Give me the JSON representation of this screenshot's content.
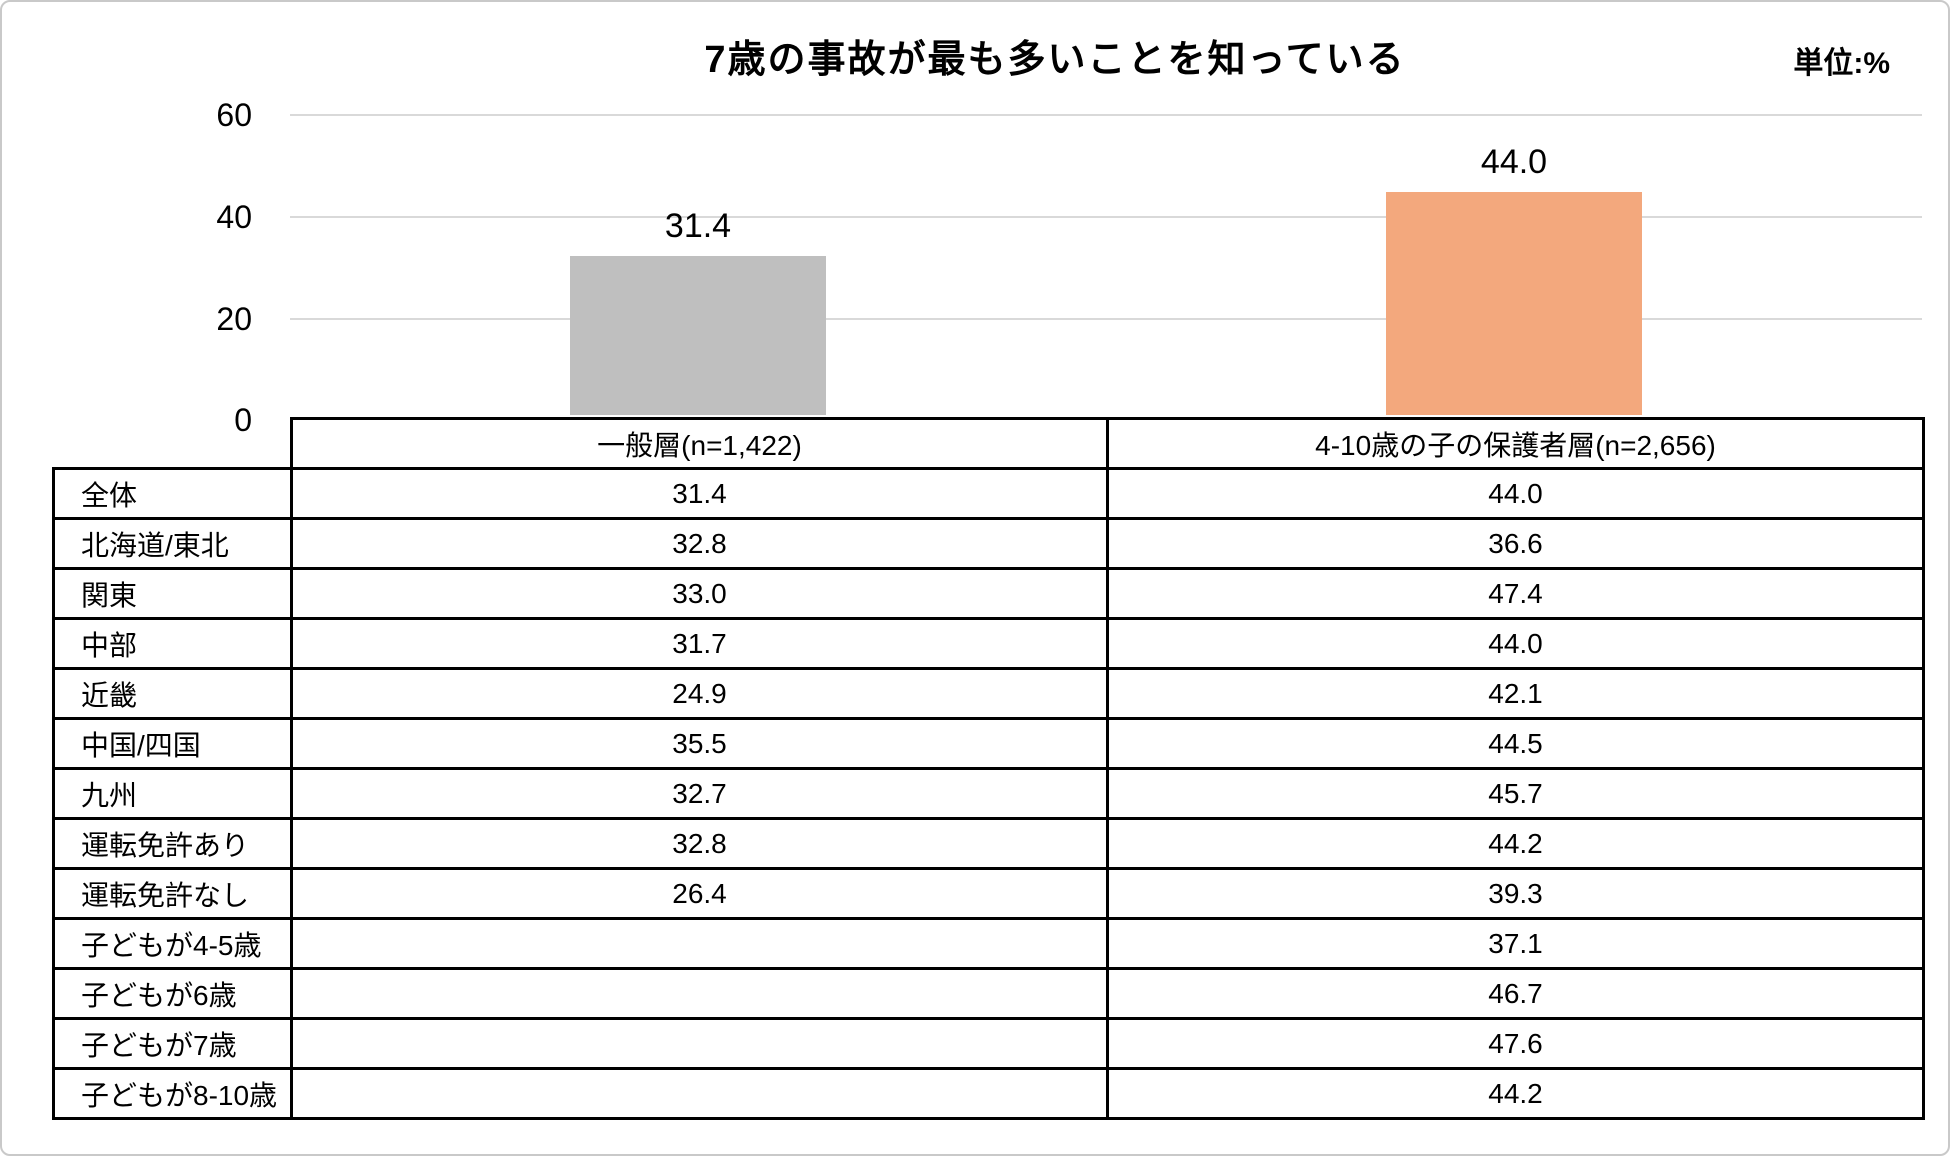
{
  "chart_data": {
    "type": "bar",
    "title": "7歳の事故が最も多いことを知っている",
    "unit_label": "単位:%",
    "ylabel": "",
    "xlabel": "",
    "ylim": [
      0,
      60
    ],
    "yticks": [
      "60",
      "40",
      "20",
      "0"
    ],
    "grid": true,
    "legend_position": "none",
    "categories": [
      "一般層(n=1,422)",
      "4-10歳の子の保護者層(n=2,656)"
    ],
    "series": [
      {
        "name": "一般層(n=1,422)",
        "value": 31.4,
        "color": "#BFBFBF"
      },
      {
        "name": "4-10歳の子の保護者層(n=2,656)",
        "value": 44.0,
        "color": "#F3A87D"
      }
    ],
    "bar_labels": [
      "31.4",
      "44.0"
    ]
  },
  "table": {
    "columns": [
      "一般層(n=1,422)",
      "4-10歳の子の保護者層(n=2,656)"
    ],
    "rows": [
      {
        "label": "全体",
        "general": "31.4",
        "parents": "44.0"
      },
      {
        "label": "北海道/東北",
        "general": "32.8",
        "parents": "36.6"
      },
      {
        "label": "関東",
        "general": "33.0",
        "parents": "47.4"
      },
      {
        "label": "中部",
        "general": "31.7",
        "parents": "44.0"
      },
      {
        "label": "近畿",
        "general": "24.9",
        "parents": "42.1"
      },
      {
        "label": "中国/四国",
        "general": "35.5",
        "parents": "44.5"
      },
      {
        "label": "九州",
        "general": "32.7",
        "parents": "45.7"
      },
      {
        "label": "運転免許あり",
        "general": "32.8",
        "parents": "44.2"
      },
      {
        "label": "運転免許なし",
        "general": "26.4",
        "parents": "39.3"
      },
      {
        "label": "子どもが4-5歳",
        "general": "",
        "parents": "37.1"
      },
      {
        "label": "子どもが6歳",
        "general": "",
        "parents": "46.7"
      },
      {
        "label": "子どもが7歳",
        "general": "",
        "parents": "47.6"
      },
      {
        "label": "子どもが8-10歳",
        "general": "",
        "parents": "44.2"
      }
    ]
  }
}
